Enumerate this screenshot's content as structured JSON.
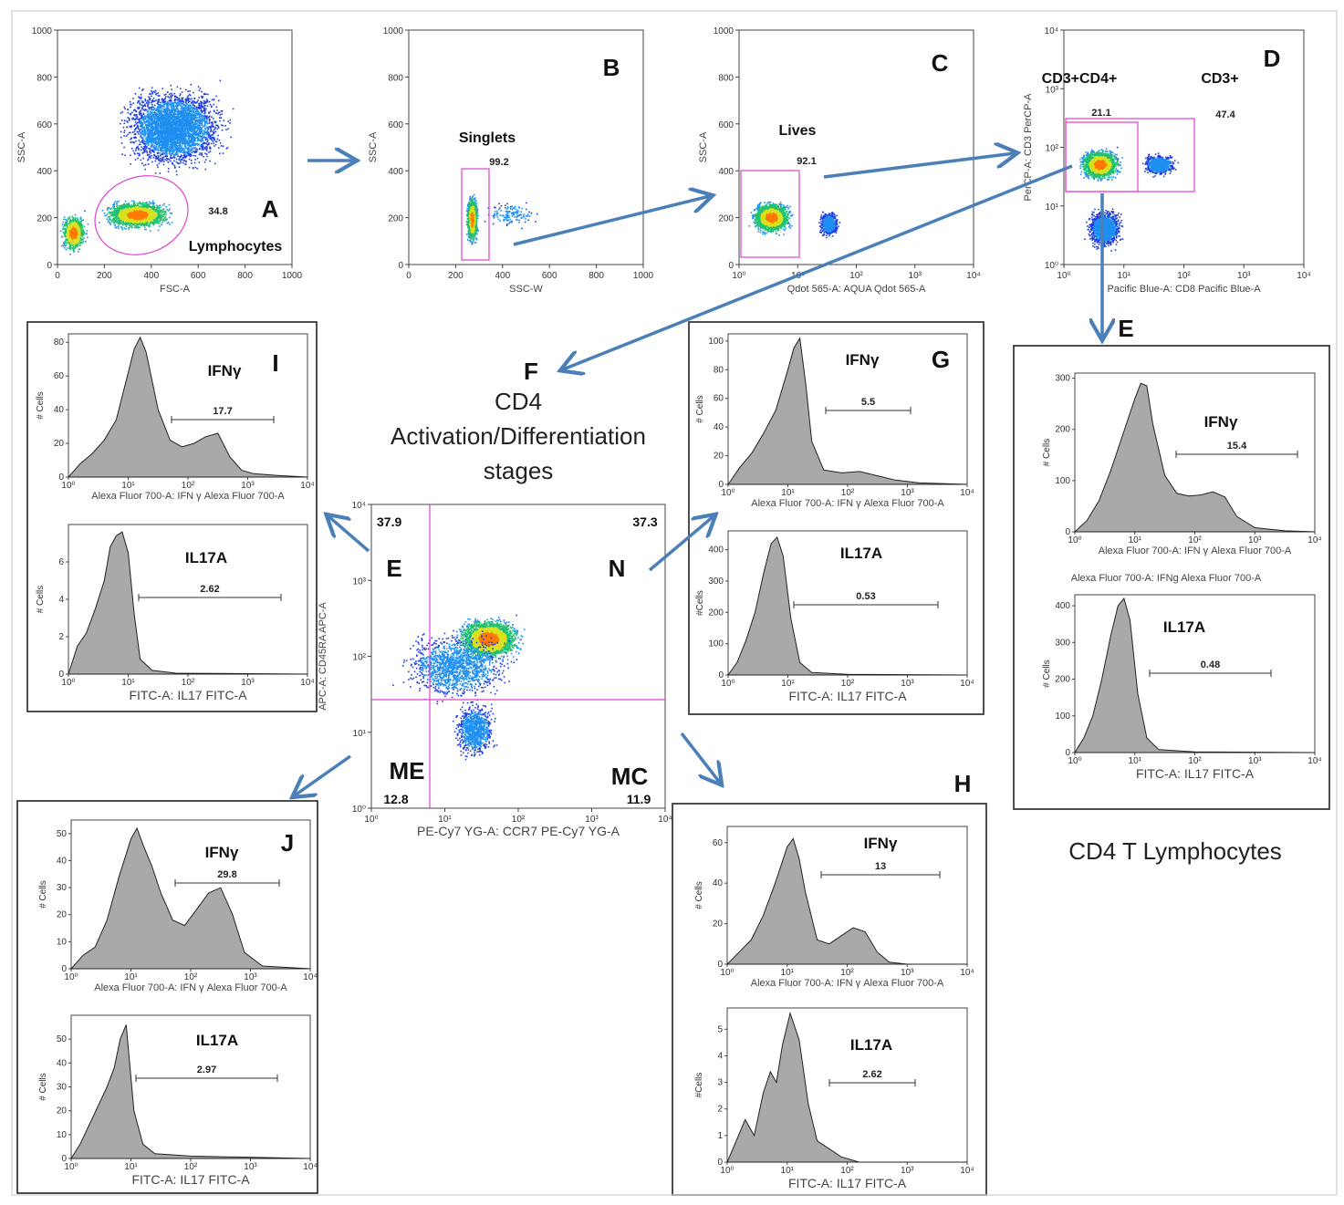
{
  "figure": {
    "center_title_letter": "F",
    "center_title_lines": [
      "CD4",
      "Activation/Differentiation",
      "stages"
    ],
    "cd4_caption": "CD4 T Lymphocytes",
    "colors": {
      "arrow": "#4a7fb8",
      "gate": "#e040d0",
      "hist_fill": "#a9a9a9"
    }
  },
  "chart_data": [
    {
      "id": "A",
      "type": "scatter",
      "title": "Lymphocytes",
      "xlabel": "FSC-A",
      "ylabel": "SSC-A",
      "xticks": [
        "0",
        "200",
        "400",
        "600",
        "800",
        "1000"
      ],
      "yticks": [
        "0",
        "200",
        "400",
        "600",
        "800",
        "1000"
      ],
      "xlim": [
        0,
        1000
      ],
      "ylim": [
        0,
        1000
      ],
      "gate_value": "34.8",
      "gate_label": "Lymphocytes",
      "panel_letter": "A"
    },
    {
      "id": "B",
      "type": "scatter",
      "xlabel": "SSC-W",
      "ylabel": "SSC-A",
      "xticks": [
        "0",
        "200",
        "400",
        "600",
        "800",
        "1000"
      ],
      "yticks": [
        "0",
        "200",
        "400",
        "600",
        "800",
        "1000"
      ],
      "xlim": [
        0,
        1000
      ],
      "ylim": [
        0,
        1000
      ],
      "gate_label": "Singlets",
      "gate_value": "99.2",
      "panel_letter": "B"
    },
    {
      "id": "C",
      "type": "scatter",
      "xlabel": "Qdot 565-A: AQUA Qdot 565-A",
      "ylabel": "SSC-A",
      "xticks": [
        "10⁰",
        "10¹",
        "10²",
        "10³",
        "10⁴"
      ],
      "yticks": [
        "0",
        "200",
        "400",
        "600",
        "800",
        "1000"
      ],
      "xlim": [
        1,
        10000
      ],
      "ylim": [
        0,
        1000
      ],
      "gate_label": "Lives",
      "gate_value": "92.1",
      "panel_letter": "C"
    },
    {
      "id": "D",
      "type": "scatter",
      "xlabel": "Pacific Blue-A: CD8 Pacific Blue-A",
      "ylabel": "PerCP-A: CD3 PerCP-A",
      "xticks": [
        "10⁰",
        "10¹",
        "10²",
        "10³",
        "10⁴"
      ],
      "yticks": [
        "10⁰",
        "10¹",
        "10²",
        "10³",
        "10⁴"
      ],
      "xlim": [
        1,
        10000
      ],
      "ylim": [
        1,
        10000
      ],
      "gates": [
        {
          "label": "CD3+CD4+",
          "value": "21.1"
        },
        {
          "label": "CD3+",
          "value": "47.4"
        }
      ],
      "panel_letter": "D"
    },
    {
      "id": "F_quadrant",
      "type": "scatter",
      "xlabel": "PE-Cy7 YG-A: CCR7 PE-Cy7 YG-A",
      "ylabel": "APC-A: CD45RA APC-A",
      "xticks": [
        "10⁰",
        "10¹",
        "10²",
        "10³",
        "10⁴"
      ],
      "yticks": [
        "10⁰",
        "10¹",
        "10²",
        "10³",
        "10⁴"
      ],
      "xlim": [
        1,
        10000
      ],
      "ylim": [
        1,
        10000
      ],
      "quadrants": [
        {
          "name": "E",
          "value": "37.9"
        },
        {
          "name": "N",
          "value": "37.3"
        },
        {
          "name": "ME",
          "value": "12.8"
        },
        {
          "name": "MC",
          "value": "11.9"
        }
      ]
    },
    {
      "id": "I",
      "type": "area",
      "panel_letter": "I",
      "subplots": [
        {
          "marker": "IFNγ",
          "xlabel": "Alexa Fluor 700-A: IFN γ Alexa Fluor 700-A",
          "ylabel": "# Cells",
          "yticks": [
            "0",
            "20",
            "40",
            "60",
            "80"
          ],
          "ylim": [
            0,
            85
          ],
          "xticks": [
            "10⁰",
            "10¹",
            "10²",
            "10³",
            "10⁴"
          ],
          "gate_value": "17.7",
          "x": [
            0,
            0.2,
            0.4,
            0.6,
            0.8,
            1.0,
            1.1,
            1.2,
            1.3,
            1.5,
            1.7,
            1.9,
            2.1,
            2.3,
            2.5,
            2.7,
            2.9,
            3.1,
            3.5,
            4
          ],
          "y": [
            0,
            8,
            14,
            22,
            34,
            62,
            76,
            83,
            74,
            40,
            22,
            18,
            20,
            24,
            26,
            12,
            4,
            2,
            1,
            0
          ]
        },
        {
          "marker": "IL17A",
          "xlabel": "FITC-A: IL17 FITC-A",
          "ylabel": "# Cells",
          "yticks": [
            "0",
            "2",
            "4",
            "6"
          ],
          "ylim": [
            0,
            8
          ],
          "xticks": [
            "10⁰",
            "10¹",
            "10²",
            "10³",
            "10⁴"
          ],
          "gate_value": "2.62",
          "x": [
            0,
            0.15,
            0.3,
            0.45,
            0.6,
            0.7,
            0.8,
            0.9,
            1.0,
            1.1,
            1.2,
            1.4,
            1.8,
            4
          ],
          "y": [
            0,
            1.5,
            2.2,
            3.5,
            5.0,
            6.8,
            7.4,
            7.6,
            6.5,
            3.2,
            0.8,
            0.2,
            0.05,
            0
          ]
        }
      ]
    },
    {
      "id": "G",
      "type": "area",
      "panel_letter": "G",
      "subplots": [
        {
          "marker": "IFNγ",
          "xlabel": "Alexa Fluor 700-A: IFN γ Alexa Fluor 700-A",
          "ylabel": "# Cells",
          "yticks": [
            "0",
            "20",
            "40",
            "60",
            "80",
            "100"
          ],
          "ylim": [
            0,
            105
          ],
          "xticks": [
            "10⁰",
            "10¹",
            "10²",
            "10³",
            "10⁴"
          ],
          "gate_value": "5.5",
          "x": [
            0,
            0.2,
            0.4,
            0.6,
            0.8,
            1.0,
            1.1,
            1.2,
            1.3,
            1.4,
            1.6,
            1.9,
            2.2,
            2.5,
            2.8,
            3.2,
            4
          ],
          "y": [
            0,
            12,
            22,
            36,
            52,
            80,
            95,
            102,
            70,
            30,
            10,
            8,
            9,
            6,
            3,
            1,
            0
          ]
        },
        {
          "marker": "IL17A",
          "xlabel": "FITC-A: IL17 FITC-A",
          "ylabel": "#Cells",
          "yticks": [
            "0",
            "100",
            "200",
            "300",
            "400"
          ],
          "ylim": [
            0,
            460
          ],
          "xticks": [
            "10⁰",
            "10¹",
            "10²",
            "10³",
            "10⁴"
          ],
          "gate_value": "0.53",
          "x": [
            0,
            0.15,
            0.3,
            0.45,
            0.6,
            0.72,
            0.82,
            0.92,
            1.05,
            1.2,
            1.4,
            2,
            4
          ],
          "y": [
            0,
            40,
            110,
            200,
            330,
            420,
            440,
            380,
            180,
            40,
            8,
            2,
            0
          ]
        }
      ]
    },
    {
      "id": "E_panel",
      "type": "area",
      "panel_letter": "E",
      "subplots": [
        {
          "marker": "IFNγ",
          "xlabel": "Alexa Fluor 700-A: IFN γ Alexa Fluor 700-A",
          "ylabel": "# Cells",
          "yticks": [
            "0",
            "100",
            "200",
            "300"
          ],
          "ylim": [
            0,
            310
          ],
          "xticks": [
            "10⁰",
            "10¹",
            "10²",
            "10³",
            "10⁴"
          ],
          "gate_value": "15.4",
          "caption": "Alexa Fluor 700-A: IFNg Alexa Fluor 700-A",
          "x": [
            0,
            0.2,
            0.4,
            0.6,
            0.8,
            1.0,
            1.1,
            1.2,
            1.3,
            1.5,
            1.7,
            1.9,
            2.1,
            2.3,
            2.5,
            2.7,
            3.0,
            3.5,
            4
          ],
          "y": [
            0,
            22,
            60,
            120,
            190,
            260,
            290,
            285,
            210,
            110,
            75,
            70,
            72,
            78,
            68,
            30,
            8,
            2,
            0
          ]
        },
        {
          "marker": "IL17A",
          "xlabel": "FITC-A: IL17 FITC-A",
          "ylabel": "# Cells",
          "yticks": [
            "0",
            "100",
            "200",
            "300",
            "400"
          ],
          "ylim": [
            0,
            430
          ],
          "xticks": [
            "10⁰",
            "10¹",
            "10²",
            "10³",
            "10⁴"
          ],
          "gate_value": "0.48",
          "x": [
            0,
            0.15,
            0.3,
            0.45,
            0.6,
            0.72,
            0.82,
            0.92,
            1.05,
            1.2,
            1.4,
            2,
            4
          ],
          "y": [
            0,
            40,
            100,
            200,
            320,
            400,
            420,
            360,
            160,
            40,
            8,
            2,
            0
          ]
        }
      ]
    },
    {
      "id": "J",
      "type": "area",
      "panel_letter": "J",
      "subplots": [
        {
          "marker": "IFNγ",
          "xlabel": "Alexa Fluor 700-A: IFN γ Alexa Fluor 700-A",
          "ylabel": "# Cells",
          "yticks": [
            "0",
            "10",
            "20",
            "30",
            "40",
            "50"
          ],
          "ylim": [
            0,
            55
          ],
          "xticks": [
            "10⁰",
            "10¹",
            "10²",
            "10³",
            "10⁴"
          ],
          "gate_value": "29.8",
          "x": [
            0,
            0.2,
            0.4,
            0.6,
            0.8,
            1.0,
            1.1,
            1.2,
            1.35,
            1.5,
            1.7,
            1.9,
            2.1,
            2.3,
            2.5,
            2.7,
            2.9,
            3.2,
            4
          ],
          "y": [
            0,
            5,
            8,
            18,
            34,
            48,
            52,
            46,
            38,
            28,
            18,
            16,
            22,
            28,
            30,
            20,
            6,
            1,
            0
          ]
        },
        {
          "marker": "IL17A",
          "xlabel": "FITC-A: IL17 FITC-A",
          "ylabel": "# Cells",
          "yticks": [
            "0",
            "10",
            "20",
            "30",
            "40",
            "50"
          ],
          "ylim": [
            0,
            60
          ],
          "xticks": [
            "10⁰",
            "10¹",
            "10²",
            "10³",
            "10⁴"
          ],
          "gate_value": "2.97",
          "x": [
            0,
            0.15,
            0.3,
            0.45,
            0.6,
            0.72,
            0.82,
            0.92,
            1.05,
            1.2,
            1.4,
            2,
            4
          ],
          "y": [
            0,
            6,
            14,
            22,
            30,
            38,
            50,
            56,
            20,
            6,
            2,
            1,
            0
          ]
        }
      ]
    },
    {
      "id": "H",
      "type": "area",
      "panel_letter": "H",
      "subplots": [
        {
          "marker": "IFNγ",
          "xlabel": "Alexa Fluor 700-A: IFN γ Alexa Fluor 700-A",
          "ylabel": "# Cells",
          "yticks": [
            "0",
            "20",
            "40",
            "60"
          ],
          "ylim": [
            0,
            68
          ],
          "xticks": [
            "10⁰",
            "10¹",
            "10²",
            "10³",
            "10⁴"
          ],
          "gate_value": "13",
          "x": [
            0,
            0.2,
            0.4,
            0.6,
            0.8,
            1.0,
            1.1,
            1.2,
            1.3,
            1.5,
            1.7,
            1.9,
            2.1,
            2.3,
            2.5,
            2.7,
            3.0,
            4
          ],
          "y": [
            0,
            6,
            12,
            24,
            40,
            58,
            62,
            52,
            36,
            12,
            10,
            14,
            18,
            16,
            6,
            1,
            0,
            0
          ]
        },
        {
          "marker": "IL17A",
          "xlabel": "FITC-A: IL17 FITC-A",
          "ylabel": "#Cells",
          "yticks": [
            "0",
            "1",
            "2",
            "3",
            "4",
            "5"
          ],
          "ylim": [
            0,
            5.8
          ],
          "xticks": [
            "10⁰",
            "10¹",
            "10²",
            "10³",
            "10⁴"
          ],
          "gate_value": "2.62",
          "x": [
            0,
            0.15,
            0.3,
            0.45,
            0.6,
            0.72,
            0.82,
            0.92,
            1.05,
            1.2,
            1.35,
            1.5,
            1.7,
            1.9,
            2.2,
            4
          ],
          "y": [
            0,
            0.8,
            1.6,
            1.0,
            2.6,
            3.4,
            3.0,
            4.4,
            5.6,
            4.6,
            2.2,
            0.8,
            0.5,
            0.2,
            0,
            0
          ]
        }
      ]
    }
  ]
}
